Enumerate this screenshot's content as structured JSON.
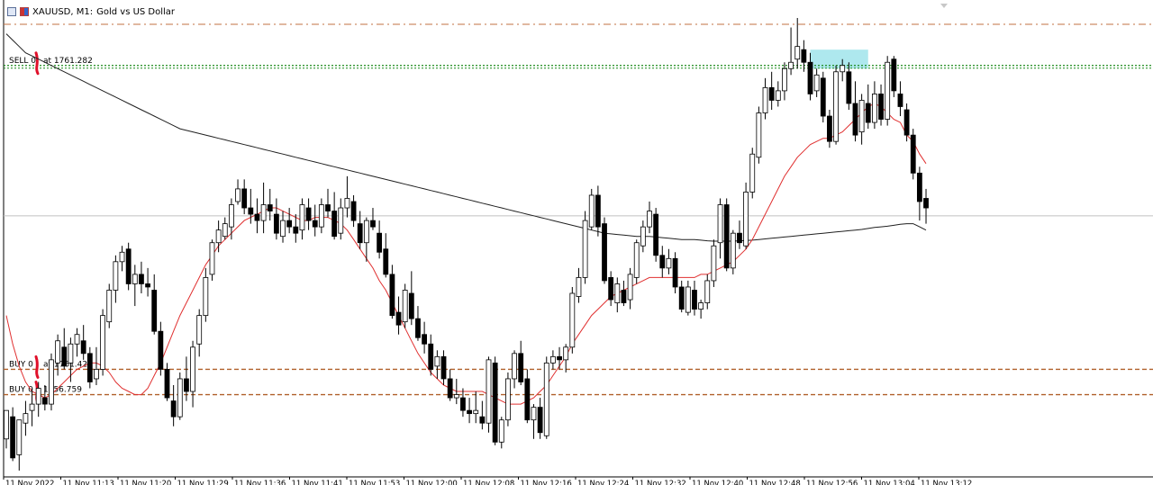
{
  "header": {
    "symbol_label": "XAUUSD, M1:",
    "description": "Gold vs US Dollar"
  },
  "chart_data": {
    "type": "candlestick",
    "symbol": "XAUUSD",
    "timeframe": "M1",
    "ylim": [
      1755.1,
      1769.6
    ],
    "x_ticks": [
      "11 Nov 2022",
      "11 Nov 11:13",
      "11 Nov 11:20",
      "11 Nov 11:29",
      "11 Nov 11:36",
      "11 Nov 11:41",
      "11 Nov 11:53",
      "11 Nov 12:00",
      "11 Nov 12:08",
      "11 Nov 12:16",
      "11 Nov 12:24",
      "11 Nov 12:32",
      "11 Nov 12:40",
      "11 Nov 12:48",
      "11 Nov 12:56",
      "11 Nov 13:04",
      "11 Nov 13:12"
    ],
    "candles": [
      [
        1756.3,
        1757.2,
        1756.0,
        1757.2
      ],
      [
        1757.0,
        1757.3,
        1755.6,
        1755.7
      ],
      [
        1755.8,
        1756.9,
        1755.3,
        1756.9
      ],
      [
        1756.8,
        1757.5,
        1756.4,
        1757.1
      ],
      [
        1757.2,
        1757.9,
        1756.7,
        1757.4
      ],
      [
        1757.4,
        1758.1,
        1757.0,
        1757.9
      ],
      [
        1757.6,
        1758.0,
        1757.2,
        1757.4
      ],
      [
        1757.4,
        1759.0,
        1757.2,
        1758.8
      ],
      [
        1758.7,
        1759.6,
        1758.3,
        1759.4
      ],
      [
        1759.2,
        1759.8,
        1758.5,
        1758.6
      ],
      [
        1758.7,
        1759.5,
        1758.1,
        1759.3
      ],
      [
        1759.3,
        1759.8,
        1758.9,
        1759.6
      ],
      [
        1759.4,
        1759.9,
        1758.8,
        1759.0
      ],
      [
        1759.0,
        1759.2,
        1757.9,
        1758.1
      ],
      [
        1758.2,
        1759.2,
        1758.0,
        1758.5
      ],
      [
        1758.5,
        1760.4,
        1758.3,
        1760.2
      ],
      [
        1760.0,
        1761.2,
        1759.8,
        1761.0
      ],
      [
        1761.0,
        1762.1,
        1760.6,
        1761.9
      ],
      [
        1761.9,
        1762.4,
        1761.6,
        1762.2
      ],
      [
        1762.3,
        1762.5,
        1761.0,
        1761.2
      ],
      [
        1761.2,
        1761.8,
        1760.5,
        1761.5
      ],
      [
        1761.5,
        1761.9,
        1760.9,
        1761.2
      ],
      [
        1761.2,
        1761.7,
        1760.8,
        1761.1
      ],
      [
        1761.0,
        1761.5,
        1759.6,
        1759.7
      ],
      [
        1759.7,
        1760.0,
        1758.3,
        1758.5
      ],
      [
        1758.5,
        1758.7,
        1757.5,
        1757.6
      ],
      [
        1757.5,
        1758.0,
        1756.7,
        1757.0
      ],
      [
        1757.0,
        1758.4,
        1756.9,
        1758.2
      ],
      [
        1758.2,
        1758.9,
        1757.5,
        1757.8
      ],
      [
        1757.8,
        1759.4,
        1757.3,
        1759.2
      ],
      [
        1759.3,
        1760.4,
        1758.9,
        1760.2
      ],
      [
        1760.2,
        1761.7,
        1760.0,
        1761.4
      ],
      [
        1761.5,
        1762.6,
        1761.3,
        1762.5
      ],
      [
        1762.5,
        1763.2,
        1762.2,
        1762.9
      ],
      [
        1762.7,
        1763.3,
        1762.6,
        1763.1
      ],
      [
        1763.0,
        1763.9,
        1762.6,
        1763.7
      ],
      [
        1763.8,
        1764.5,
        1763.7,
        1764.2
      ],
      [
        1764.2,
        1764.5,
        1763.4,
        1763.6
      ],
      [
        1763.6,
        1764.2,
        1763.1,
        1763.4
      ],
      [
        1763.4,
        1763.9,
        1762.8,
        1763.2
      ],
      [
        1763.2,
        1764.4,
        1762.8,
        1763.7
      ],
      [
        1763.7,
        1764.2,
        1763.2,
        1763.5
      ],
      [
        1763.4,
        1763.9,
        1762.6,
        1762.8
      ],
      [
        1762.7,
        1763.5,
        1762.5,
        1763.2
      ],
      [
        1763.2,
        1763.6,
        1762.8,
        1763.0
      ],
      [
        1763.0,
        1763.4,
        1762.5,
        1762.8
      ],
      [
        1762.9,
        1763.9,
        1762.6,
        1763.7
      ],
      [
        1763.6,
        1763.9,
        1762.9,
        1763.2
      ],
      [
        1763.2,
        1763.7,
        1762.7,
        1763.0
      ],
      [
        1763.0,
        1763.9,
        1762.8,
        1763.7
      ],
      [
        1763.7,
        1764.2,
        1763.3,
        1763.5
      ],
      [
        1763.5,
        1764.1,
        1762.6,
        1762.7
      ],
      [
        1762.8,
        1763.9,
        1762.6,
        1763.6
      ],
      [
        1763.6,
        1764.6,
        1763.3,
        1763.9
      ],
      [
        1763.8,
        1764.0,
        1763.0,
        1763.2
      ],
      [
        1763.1,
        1763.5,
        1762.3,
        1762.5
      ],
      [
        1762.5,
        1763.3,
        1761.9,
        1763.2
      ],
      [
        1763.2,
        1763.6,
        1762.9,
        1763.0
      ],
      [
        1762.8,
        1763.2,
        1762.0,
        1762.2
      ],
      [
        1762.3,
        1762.8,
        1761.4,
        1761.5
      ],
      [
        1761.5,
        1761.8,
        1760.1,
        1760.2
      ],
      [
        1760.3,
        1760.8,
        1759.6,
        1759.9
      ],
      [
        1760.0,
        1761.2,
        1759.8,
        1761.0
      ],
      [
        1760.9,
        1761.6,
        1759.9,
        1760.1
      ],
      [
        1760.1,
        1760.5,
        1759.4,
        1759.5
      ],
      [
        1759.6,
        1760.0,
        1759.0,
        1759.3
      ],
      [
        1759.3,
        1759.6,
        1758.3,
        1758.5
      ],
      [
        1758.6,
        1759.1,
        1758.2,
        1758.9
      ],
      [
        1758.9,
        1759.1,
        1758.0,
        1758.2
      ],
      [
        1758.2,
        1758.5,
        1757.5,
        1757.6
      ],
      [
        1757.6,
        1758.2,
        1757.4,
        1757.7
      ],
      [
        1757.6,
        1757.9,
        1757.0,
        1757.2
      ],
      [
        1757.2,
        1757.6,
        1756.8,
        1757.1
      ],
      [
        1757.1,
        1757.8,
        1756.8,
        1757.2
      ],
      [
        1757.0,
        1757.5,
        1756.6,
        1756.8
      ],
      [
        1756.8,
        1758.9,
        1756.5,
        1758.8
      ],
      [
        1758.7,
        1758.9,
        1756.1,
        1756.2
      ],
      [
        1756.2,
        1757.0,
        1756.0,
        1756.9
      ],
      [
        1756.9,
        1758.4,
        1756.7,
        1758.2
      ],
      [
        1758.2,
        1759.1,
        1757.9,
        1759.0
      ],
      [
        1759.0,
        1759.4,
        1758.0,
        1758.1
      ],
      [
        1758.2,
        1758.5,
        1756.8,
        1756.9
      ],
      [
        1756.9,
        1757.4,
        1756.3,
        1757.3
      ],
      [
        1757.3,
        1757.6,
        1756.3,
        1756.5
      ],
      [
        1756.4,
        1758.9,
        1756.3,
        1758.7
      ],
      [
        1758.7,
        1759.1,
        1758.5,
        1758.9
      ],
      [
        1758.9,
        1759.2,
        1758.5,
        1758.8
      ],
      [
        1758.8,
        1759.3,
        1758.4,
        1759.2
      ],
      [
        1759.2,
        1761.1,
        1759.0,
        1760.9
      ],
      [
        1760.8,
        1761.7,
        1760.6,
        1761.4
      ],
      [
        1761.4,
        1763.5,
        1761.2,
        1763.2
      ],
      [
        1763.0,
        1764.2,
        1762.9,
        1764.0
      ],
      [
        1764.0,
        1764.3,
        1762.7,
        1763.0
      ],
      [
        1763.1,
        1763.3,
        1761.2,
        1761.3
      ],
      [
        1761.4,
        1761.6,
        1760.5,
        1760.7
      ],
      [
        1760.6,
        1761.4,
        1760.3,
        1761.2
      ],
      [
        1761.0,
        1761.3,
        1760.5,
        1760.6
      ],
      [
        1760.7,
        1761.7,
        1760.4,
        1761.5
      ],
      [
        1761.4,
        1762.6,
        1761.2,
        1762.5
      ],
      [
        1762.4,
        1763.2,
        1762.2,
        1763.0
      ],
      [
        1763.0,
        1763.8,
        1762.8,
        1763.5
      ],
      [
        1763.4,
        1763.6,
        1761.9,
        1762.1
      ],
      [
        1762.1,
        1762.4,
        1761.4,
        1761.7
      ],
      [
        1761.7,
        1762.3,
        1761.5,
        1762.0
      ],
      [
        1762.0,
        1762.2,
        1760.9,
        1761.1
      ],
      [
        1761.1,
        1761.3,
        1760.3,
        1760.4
      ],
      [
        1760.3,
        1761.3,
        1760.2,
        1761.1
      ],
      [
        1761.0,
        1761.3,
        1760.2,
        1760.4
      ],
      [
        1760.4,
        1760.7,
        1760.1,
        1760.6
      ],
      [
        1760.6,
        1761.5,
        1760.4,
        1761.3
      ],
      [
        1761.3,
        1762.6,
        1761.1,
        1762.4
      ],
      [
        1762.5,
        1763.9,
        1762.0,
        1763.7
      ],
      [
        1763.7,
        1763.9,
        1761.6,
        1761.7
      ],
      [
        1761.7,
        1762.9,
        1761.5,
        1762.8
      ],
      [
        1762.8,
        1763.2,
        1762.3,
        1762.5
      ],
      [
        1762.4,
        1764.4,
        1762.3,
        1764.1
      ],
      [
        1764.1,
        1765.5,
        1763.9,
        1765.3
      ],
      [
        1765.2,
        1766.8,
        1765.0,
        1766.6
      ],
      [
        1766.6,
        1767.7,
        1766.4,
        1767.4
      ],
      [
        1767.4,
        1767.9,
        1766.7,
        1767.0
      ],
      [
        1767.0,
        1767.6,
        1766.8,
        1767.3
      ],
      [
        1767.3,
        1768.2,
        1767.0,
        1768.0
      ],
      [
        1768.0,
        1769.3,
        1767.8,
        1768.2
      ],
      [
        1768.3,
        1769.6,
        1768.0,
        1768.7
      ],
      [
        1768.6,
        1768.9,
        1767.9,
        1768.2
      ],
      [
        1768.2,
        1768.5,
        1767.0,
        1767.2
      ],
      [
        1767.3,
        1768.0,
        1767.1,
        1767.8
      ],
      [
        1767.7,
        1767.9,
        1766.3,
        1766.5
      ],
      [
        1766.5,
        1766.7,
        1765.5,
        1765.7
      ],
      [
        1765.7,
        1768.1,
        1765.6,
        1767.9
      ],
      [
        1767.9,
        1768.3,
        1767.6,
        1768.1
      ],
      [
        1767.9,
        1768.2,
        1766.7,
        1766.9
      ],
      [
        1766.9,
        1767.6,
        1765.7,
        1765.9
      ],
      [
        1766.0,
        1767.2,
        1765.6,
        1767.0
      ],
      [
        1766.9,
        1767.5,
        1766.1,
        1766.3
      ],
      [
        1766.3,
        1767.6,
        1766.1,
        1767.2
      ],
      [
        1767.2,
        1767.5,
        1766.2,
        1766.4
      ],
      [
        1766.4,
        1768.4,
        1766.2,
        1768.2
      ],
      [
        1768.3,
        1768.4,
        1767.1,
        1767.3
      ],
      [
        1767.2,
        1767.6,
        1766.5,
        1766.8
      ],
      [
        1766.7,
        1766.9,
        1765.7,
        1765.9
      ],
      [
        1765.9,
        1766.1,
        1764.5,
        1764.7
      ],
      [
        1764.7,
        1764.9,
        1763.2,
        1763.8
      ],
      [
        1763.9,
        1764.2,
        1763.1,
        1763.6
      ]
    ],
    "ma_fast": {
      "name": "MA fast",
      "start_index": 0,
      "values": [
        1760.2,
        1759.3,
        1758.6,
        1758.1,
        1757.8,
        1757.7,
        1757.6,
        1757.7,
        1757.9,
        1758.1,
        1758.3,
        1758.5,
        1758.6,
        1758.7,
        1758.7,
        1758.6,
        1758.4,
        1758.1,
        1757.9,
        1757.8,
        1757.7,
        1757.7,
        1757.9,
        1758.3,
        1758.7,
        1759.2,
        1759.7,
        1760.2,
        1760.6,
        1761.0,
        1761.4,
        1761.8,
        1762.1,
        1762.4,
        1762.6,
        1762.8,
        1763.0,
        1763.2,
        1763.3,
        1763.4,
        1763.5,
        1763.6,
        1763.6,
        1763.5,
        1763.4,
        1763.3,
        1763.2,
        1763.2,
        1763.3,
        1763.3,
        1763.3,
        1763.2,
        1763.1,
        1762.9,
        1762.6,
        1762.3,
        1762.0,
        1761.7,
        1761.3,
        1761.0,
        1760.6,
        1760.2,
        1759.8,
        1759.4,
        1759.0,
        1758.7,
        1758.4,
        1758.2,
        1758.0,
        1757.9,
        1757.8,
        1757.8,
        1757.8,
        1757.8,
        1757.8,
        1757.7,
        1757.6,
        1757.5,
        1757.4,
        1757.4,
        1757.4,
        1757.5,
        1757.6,
        1757.8,
        1758.0,
        1758.3,
        1758.6,
        1758.9,
        1759.3,
        1759.6,
        1759.9,
        1760.2,
        1760.4,
        1760.6,
        1760.8,
        1760.9,
        1761.0,
        1761.1,
        1761.2,
        1761.3,
        1761.4,
        1761.4,
        1761.4,
        1761.4,
        1761.4,
        1761.4,
        1761.4,
        1761.4,
        1761.5,
        1761.5,
        1761.6,
        1761.7,
        1761.8,
        1761.9,
        1762.1,
        1762.3,
        1762.6,
        1763.0,
        1763.4,
        1763.8,
        1764.2,
        1764.6,
        1764.9,
        1765.2,
        1765.4,
        1765.6,
        1765.7,
        1765.8,
        1765.8,
        1765.9,
        1766.0,
        1766.2,
        1766.4,
        1766.6,
        1766.8,
        1766.9,
        1766.8,
        1766.6,
        1766.4,
        1766.3,
        1765.9,
        1765.7,
        1765.3,
        1765.0
      ]
    },
    "ma_slow": {
      "name": "MA slow",
      "start_index": 0,
      "values": [
        1769.1,
        1768.9,
        1768.7,
        1768.5,
        1768.4,
        1768.3,
        1768.2,
        1768.1,
        1768.0,
        1767.9,
        1767.8,
        1767.7,
        1767.6,
        1767.5,
        1767.4,
        1767.3,
        1767.2,
        1767.1,
        1767.0,
        1766.9,
        1766.8,
        1766.7,
        1766.6,
        1766.5,
        1766.4,
        1766.3,
        1766.2,
        1766.1,
        1766.05,
        1766.0,
        1765.95,
        1765.9,
        1765.85,
        1765.8,
        1765.75,
        1765.7,
        1765.65,
        1765.6,
        1765.55,
        1765.5,
        1765.45,
        1765.4,
        1765.35,
        1765.3,
        1765.25,
        1765.2,
        1765.15,
        1765.1,
        1765.05,
        1765.0,
        1764.95,
        1764.9,
        1764.85,
        1764.8,
        1764.75,
        1764.7,
        1764.65,
        1764.6,
        1764.55,
        1764.5,
        1764.45,
        1764.4,
        1764.35,
        1764.3,
        1764.25,
        1764.2,
        1764.15,
        1764.1,
        1764.05,
        1764.0,
        1763.95,
        1763.9,
        1763.85,
        1763.8,
        1763.75,
        1763.7,
        1763.65,
        1763.6,
        1763.55,
        1763.5,
        1763.45,
        1763.4,
        1763.35,
        1763.3,
        1763.25,
        1763.2,
        1763.15,
        1763.1,
        1763.05,
        1763.0,
        1762.95,
        1762.9,
        1762.85,
        1762.8,
        1762.78,
        1762.76,
        1762.74,
        1762.72,
        1762.7,
        1762.7,
        1762.7,
        1762.68,
        1762.66,
        1762.64,
        1762.62,
        1762.6,
        1762.6,
        1762.6,
        1762.58,
        1762.56,
        1762.55,
        1762.55,
        1762.55,
        1762.55,
        1762.56,
        1762.57,
        1762.58,
        1762.6,
        1762.62,
        1762.64,
        1762.66,
        1762.68,
        1762.7,
        1762.72,
        1762.74,
        1762.76,
        1762.78,
        1762.8,
        1762.82,
        1762.84,
        1762.86,
        1762.88,
        1762.9,
        1762.92,
        1762.95,
        1762.98,
        1763.0,
        1763.02,
        1763.05,
        1763.08,
        1763.1,
        1763.1,
        1763.0,
        1762.9
      ]
    },
    "price_levels": [
      {
        "name": "sell-order",
        "label": "SELL 0",
        "price_label": "at 1761.282",
        "value": 1768.1,
        "style": "dotted",
        "color": "#1a8a1a"
      },
      {
        "name": "buy-order-1",
        "label": "BUY 0",
        "price_label": "at 1761.422",
        "value": 1758.5,
        "style": "dashed",
        "color": "#b0602a"
      },
      {
        "name": "buy-order-2",
        "label": "BUY 0",
        "price_label": "1756.759",
        "value": 1757.7,
        "style": "dashed",
        "color": "#b0602a"
      }
    ],
    "top_line": {
      "value": 1769.4,
      "color": "#c07040"
    },
    "current_price_line": {
      "value": 1763.35,
      "color": "#c0c0c0"
    },
    "highlight_zone": {
      "x_from_index": 125,
      "x_to_index": 134,
      "y_from": 1768.0,
      "y_to": 1768.6,
      "color": "#aee8ee"
    },
    "colors": {
      "bull_fill": "#ffffff",
      "bear_fill": "#000000",
      "candle_edge": "#000000",
      "ma_fast": "#e03030",
      "ma_slow": "#202020",
      "marker": "#e0102a"
    }
  }
}
